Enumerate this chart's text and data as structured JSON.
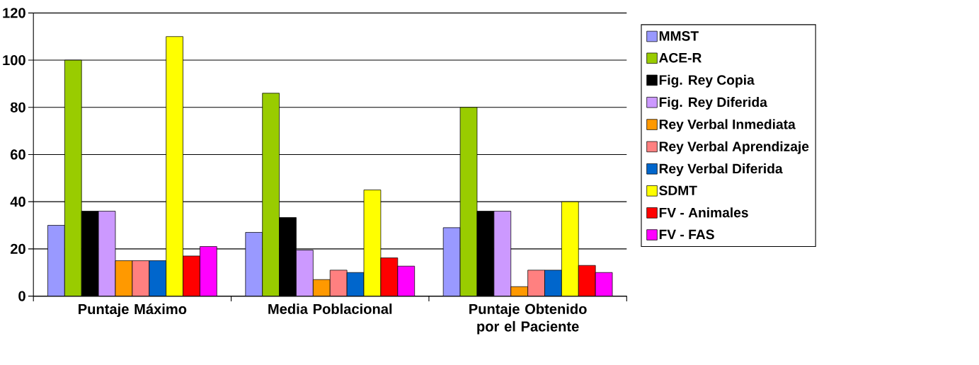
{
  "chart_data": {
    "type": "bar",
    "categories": [
      "Puntaje Máximo",
      "Media Poblacional",
      "Puntaje Obtenido por el Paciente"
    ],
    "series": [
      {
        "name": "MMST",
        "color": "#9999ff",
        "values": [
          30,
          27,
          29
        ]
      },
      {
        "name": "ACE-R",
        "color": "#99cc00",
        "values": [
          100,
          86,
          80
        ]
      },
      {
        "name": "Fig. Rey Copia",
        "color": "#000000",
        "values": [
          36,
          33.3,
          36
        ]
      },
      {
        "name": "Fig. Rey Diferida",
        "color": "#cc99ff",
        "values": [
          36,
          19.5,
          36
        ]
      },
      {
        "name": "Rey Verbal Inmediata",
        "color": "#ff9900",
        "values": [
          15,
          7,
          4
        ]
      },
      {
        "name": "Rey Verbal Aprendizaje",
        "color": "#ff8080",
        "values": [
          15,
          11,
          11
        ]
      },
      {
        "name": "Rey Verbal Diferida",
        "color": "#0066cc",
        "values": [
          15,
          10,
          11
        ]
      },
      {
        "name": "SDMT",
        "color": "#ffff00",
        "values": [
          110,
          45,
          40
        ]
      },
      {
        "name": "FV - Animales",
        "color": "#ff0000",
        "values": [
          17,
          16.2,
          13
        ]
      },
      {
        "name": "FV - FAS",
        "color": "#ff00ff",
        "values": [
          21,
          12.7,
          10
        ]
      }
    ],
    "ylim": [
      0,
      120
    ],
    "yticks": [
      0,
      20,
      40,
      60,
      80,
      100,
      120
    ],
    "grid": "y",
    "legend": "right"
  }
}
